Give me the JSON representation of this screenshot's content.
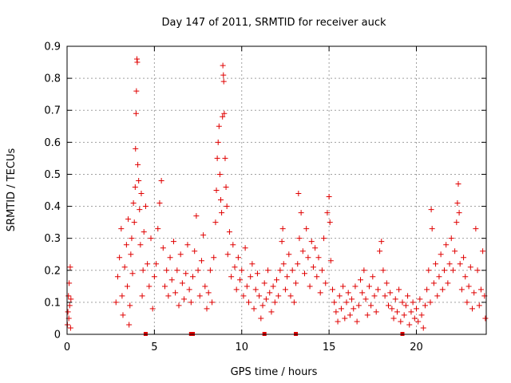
{
  "chart_data": {
    "type": "scatter",
    "title": "Day 147 of 2011, SRMTID for receiver auck",
    "xlabel": "GPS time / hours",
    "ylabel": "SRMTID / TECUs",
    "xlim": [
      0,
      24
    ],
    "ylim": [
      0,
      0.9
    ],
    "xticks": [
      0,
      5,
      10,
      15,
      20
    ],
    "xtick_labels": [
      "0",
      "5",
      "10",
      "15",
      "20"
    ],
    "yticks": [
      0,
      0.1,
      0.2,
      0.3,
      0.4,
      0.5,
      0.6,
      0.7,
      0.8,
      0.9
    ],
    "ytick_labels": [
      "0",
      "0.1",
      "0.2",
      "0.3",
      "0.4",
      "0.5",
      "0.6",
      "0.7",
      "0.8",
      "0.9"
    ],
    "grid": true,
    "legend": "none",
    "marker": "plus",
    "color": "#e00000",
    "series": [
      {
        "points": [
          [
            0.02,
            0.03
          ],
          [
            0.05,
            0.07
          ],
          [
            0.08,
            0.12
          ],
          [
            0.1,
            0.05
          ],
          [
            0.12,
            0.16
          ],
          [
            0.15,
            0.09
          ],
          [
            0.18,
            0.21
          ],
          [
            0.2,
            0.02
          ],
          [
            0.22,
            0.11
          ],
          [
            2.8,
            0.1
          ],
          [
            2.9,
            0.18
          ],
          [
            3.0,
            0.24
          ],
          [
            3.1,
            0.33
          ],
          [
            3.15,
            0.12
          ],
          [
            3.2,
            0.06
          ],
          [
            3.3,
            0.21
          ],
          [
            3.4,
            0.28
          ],
          [
            3.45,
            0.15
          ],
          [
            3.5,
            0.36
          ],
          [
            3.55,
            0.03
          ],
          [
            3.6,
            0.09
          ],
          [
            3.65,
            0.25
          ],
          [
            3.7,
            0.3
          ],
          [
            3.75,
            0.19
          ],
          [
            3.8,
            0.41
          ],
          [
            3.85,
            0.35
          ],
          [
            3.9,
            0.46
          ],
          [
            3.92,
            0.58
          ],
          [
            3.95,
            0.69
          ],
          [
            3.97,
            0.76
          ],
          [
            4.0,
            0.86
          ],
          [
            4.02,
            0.85
          ],
          [
            4.05,
            0.53
          ],
          [
            4.1,
            0.48
          ],
          [
            4.15,
            0.39
          ],
          [
            4.2,
            0.28
          ],
          [
            4.25,
            0.44
          ],
          [
            4.3,
            0.12
          ],
          [
            4.35,
            0.2
          ],
          [
            4.4,
            0.32
          ],
          [
            4.5,
            0.4
          ],
          [
            4.6,
            0.22
          ],
          [
            4.7,
            0.15
          ],
          [
            4.8,
            0.3
          ],
          [
            4.9,
            0.08
          ],
          [
            5.0,
            0.18
          ],
          [
            5.1,
            0.22
          ],
          [
            5.2,
            0.33
          ],
          [
            5.3,
            0.41
          ],
          [
            5.4,
            0.48
          ],
          [
            5.5,
            0.27
          ],
          [
            5.6,
            0.15
          ],
          [
            5.7,
            0.2
          ],
          [
            5.8,
            0.12
          ],
          [
            5.9,
            0.24
          ],
          [
            6.0,
            0.17
          ],
          [
            6.1,
            0.29
          ],
          [
            6.2,
            0.13
          ],
          [
            6.3,
            0.2
          ],
          [
            6.4,
            0.09
          ],
          [
            6.5,
            0.25
          ],
          [
            6.6,
            0.16
          ],
          [
            6.7,
            0.11
          ],
          [
            6.8,
            0.19
          ],
          [
            6.9,
            0.28
          ],
          [
            7.0,
            0.14
          ],
          [
            7.1,
            0.1
          ],
          [
            7.2,
            0.18
          ],
          [
            7.3,
            0.26
          ],
          [
            7.4,
            0.37
          ],
          [
            7.5,
            0.2
          ],
          [
            7.6,
            0.12
          ],
          [
            7.7,
            0.23
          ],
          [
            7.8,
            0.31
          ],
          [
            7.9,
            0.15
          ],
          [
            8.0,
            0.08
          ],
          [
            8.1,
            0.13
          ],
          [
            8.2,
            0.2
          ],
          [
            8.3,
            0.1
          ],
          [
            8.4,
            0.24
          ],
          [
            8.5,
            0.35
          ],
          [
            8.55,
            0.45
          ],
          [
            8.6,
            0.55
          ],
          [
            8.65,
            0.6
          ],
          [
            8.7,
            0.65
          ],
          [
            8.75,
            0.5
          ],
          [
            8.8,
            0.42
          ],
          [
            8.85,
            0.38
          ],
          [
            8.9,
            0.68
          ],
          [
            8.92,
            0.84
          ],
          [
            8.95,
            0.81
          ],
          [
            8.97,
            0.79
          ],
          [
            9.0,
            0.69
          ],
          [
            9.05,
            0.55
          ],
          [
            9.1,
            0.46
          ],
          [
            9.15,
            0.4
          ],
          [
            9.2,
            0.25
          ],
          [
            9.3,
            0.32
          ],
          [
            9.4,
            0.18
          ],
          [
            9.5,
            0.28
          ],
          [
            9.6,
            0.21
          ],
          [
            9.7,
            0.14
          ],
          [
            9.8,
            0.24
          ],
          [
            9.9,
            0.17
          ],
          [
            10.0,
            0.2
          ],
          [
            10.1,
            0.12
          ],
          [
            10.2,
            0.27
          ],
          [
            10.3,
            0.15
          ],
          [
            10.4,
            0.1
          ],
          [
            10.5,
            0.18
          ],
          [
            10.6,
            0.22
          ],
          [
            10.7,
            0.08
          ],
          [
            10.8,
            0.14
          ],
          [
            10.9,
            0.19
          ],
          [
            11.0,
            0.12
          ],
          [
            11.1,
            0.05
          ],
          [
            11.2,
            0.09
          ],
          [
            11.3,
            0.16
          ],
          [
            11.4,
            0.11
          ],
          [
            11.5,
            0.2
          ],
          [
            11.6,
            0.13
          ],
          [
            11.7,
            0.07
          ],
          [
            11.8,
            0.15
          ],
          [
            11.9,
            0.1
          ],
          [
            12.0,
            0.17
          ],
          [
            12.1,
            0.12
          ],
          [
            12.2,
            0.2
          ],
          [
            12.3,
            0.29
          ],
          [
            12.35,
            0.33
          ],
          [
            12.4,
            0.22
          ],
          [
            12.5,
            0.14
          ],
          [
            12.6,
            0.18
          ],
          [
            12.7,
            0.25
          ],
          [
            12.8,
            0.12
          ],
          [
            12.9,
            0.2
          ],
          [
            13.0,
            0.1
          ],
          [
            13.1,
            0.16
          ],
          [
            13.2,
            0.22
          ],
          [
            13.25,
            0.44
          ],
          [
            13.3,
            0.3
          ],
          [
            13.4,
            0.38
          ],
          [
            13.5,
            0.26
          ],
          [
            13.6,
            0.19
          ],
          [
            13.7,
            0.33
          ],
          [
            13.8,
            0.24
          ],
          [
            13.9,
            0.15
          ],
          [
            14.0,
            0.29
          ],
          [
            14.1,
            0.21
          ],
          [
            14.2,
            0.27
          ],
          [
            14.3,
            0.18
          ],
          [
            14.4,
            0.24
          ],
          [
            14.5,
            0.13
          ],
          [
            14.6,
            0.2
          ],
          [
            14.7,
            0.3
          ],
          [
            14.8,
            0.16
          ],
          [
            14.9,
            0.38
          ],
          [
            15.0,
            0.43
          ],
          [
            15.05,
            0.35
          ],
          [
            15.1,
            0.23
          ],
          [
            15.2,
            0.14
          ],
          [
            15.3,
            0.1
          ],
          [
            15.4,
            0.07
          ],
          [
            15.5,
            0.04
          ],
          [
            15.6,
            0.12
          ],
          [
            15.7,
            0.08
          ],
          [
            15.8,
            0.15
          ],
          [
            15.9,
            0.05
          ],
          [
            16.0,
            0.1
          ],
          [
            16.1,
            0.13
          ],
          [
            16.2,
            0.06
          ],
          [
            16.3,
            0.11
          ],
          [
            16.4,
            0.08
          ],
          [
            16.5,
            0.15
          ],
          [
            16.6,
            0.04
          ],
          [
            16.7,
            0.09
          ],
          [
            16.8,
            0.17
          ],
          [
            16.9,
            0.13
          ],
          [
            17.0,
            0.2
          ],
          [
            17.1,
            0.11
          ],
          [
            17.2,
            0.06
          ],
          [
            17.3,
            0.15
          ],
          [
            17.4,
            0.09
          ],
          [
            17.5,
            0.18
          ],
          [
            17.6,
            0.12
          ],
          [
            17.7,
            0.07
          ],
          [
            17.8,
            0.14
          ],
          [
            17.9,
            0.26
          ],
          [
            18.0,
            0.29
          ],
          [
            18.1,
            0.2
          ],
          [
            18.2,
            0.12
          ],
          [
            18.3,
            0.16
          ],
          [
            18.4,
            0.09
          ],
          [
            18.5,
            0.13
          ],
          [
            18.6,
            0.08
          ],
          [
            18.7,
            0.05
          ],
          [
            18.8,
            0.11
          ],
          [
            18.9,
            0.07
          ],
          [
            19.0,
            0.14
          ],
          [
            19.1,
            0.04
          ],
          [
            19.2,
            0.1
          ],
          [
            19.3,
            0.06
          ],
          [
            19.4,
            0.09
          ],
          [
            19.5,
            0.12
          ],
          [
            19.6,
            0.03
          ],
          [
            19.7,
            0.07
          ],
          [
            19.8,
            0.1
          ],
          [
            19.9,
            0.05
          ],
          [
            20.0,
            0.08
          ],
          [
            20.1,
            0.04
          ],
          [
            20.2,
            0.11
          ],
          [
            20.3,
            0.06
          ],
          [
            20.4,
            0.02
          ],
          [
            20.5,
            0.09
          ],
          [
            20.6,
            0.14
          ],
          [
            20.7,
            0.2
          ],
          [
            20.8,
            0.1
          ],
          [
            20.85,
            0.39
          ],
          [
            20.9,
            0.33
          ],
          [
            21.0,
            0.16
          ],
          [
            21.1,
            0.22
          ],
          [
            21.2,
            0.12
          ],
          [
            21.3,
            0.18
          ],
          [
            21.4,
            0.25
          ],
          [
            21.5,
            0.14
          ],
          [
            21.6,
            0.2
          ],
          [
            21.7,
            0.28
          ],
          [
            21.8,
            0.16
          ],
          [
            21.9,
            0.22
          ],
          [
            22.0,
            0.3
          ],
          [
            22.1,
            0.2
          ],
          [
            22.2,
            0.26
          ],
          [
            22.3,
            0.35
          ],
          [
            22.35,
            0.41
          ],
          [
            22.4,
            0.47
          ],
          [
            22.45,
            0.38
          ],
          [
            22.5,
            0.22
          ],
          [
            22.6,
            0.14
          ],
          [
            22.7,
            0.24
          ],
          [
            22.8,
            0.18
          ],
          [
            22.9,
            0.1
          ],
          [
            23.0,
            0.15
          ],
          [
            23.1,
            0.21
          ],
          [
            23.2,
            0.08
          ],
          [
            23.3,
            0.13
          ],
          [
            23.4,
            0.33
          ],
          [
            23.5,
            0.2
          ],
          [
            23.6,
            0.09
          ],
          [
            23.7,
            0.14
          ],
          [
            23.8,
            0.26
          ],
          [
            23.9,
            0.12
          ],
          [
            23.95,
            0.05
          ]
        ]
      }
    ],
    "baseline_marks_x": [
      4.5,
      7.1,
      7.2,
      11.3,
      13.1,
      19.2
    ]
  }
}
